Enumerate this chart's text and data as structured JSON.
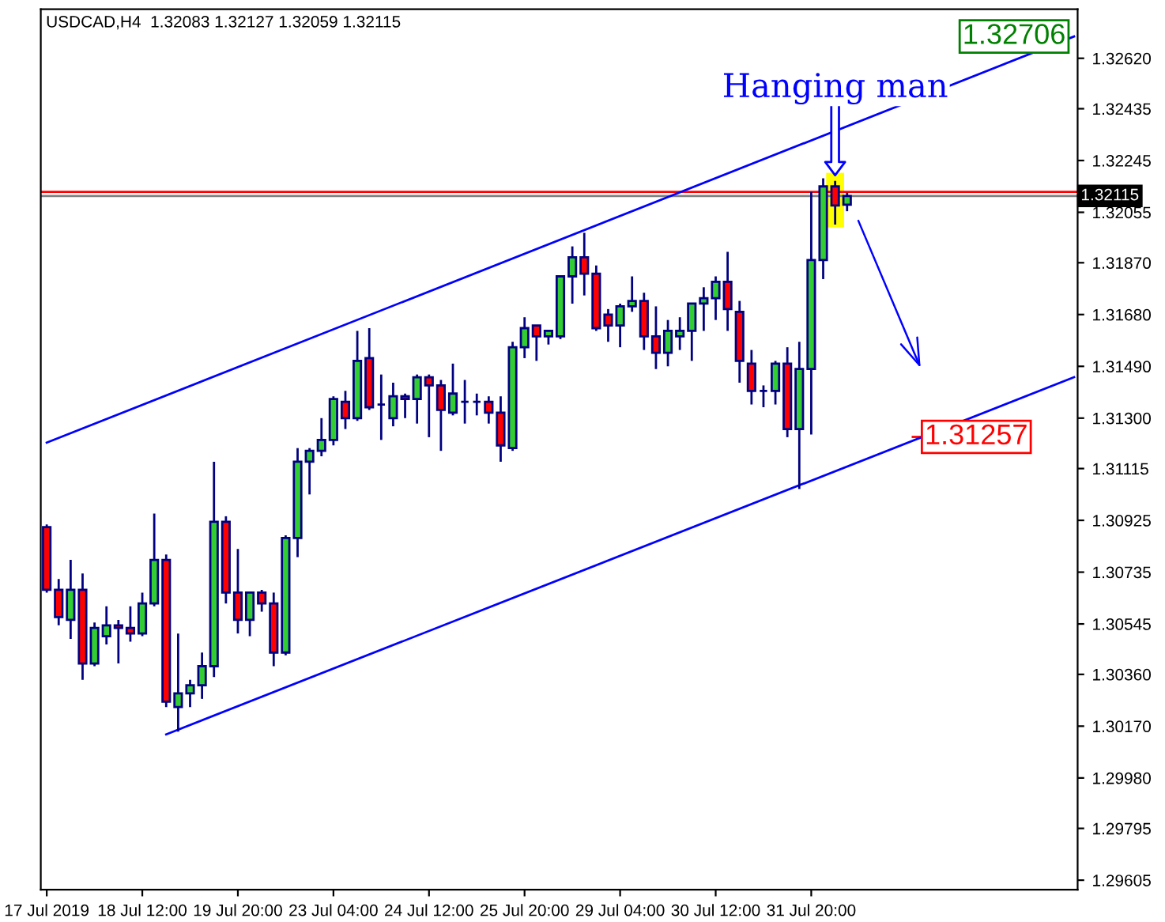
{
  "chart_data": {
    "type": "candlestick",
    "title": "USDCAD,H4  1.32083 1.32127 1.32059 1.32115",
    "categories": [
      "17 Jul 2019",
      null,
      null,
      null,
      null,
      null,
      null,
      null,
      "18 Jul 12:00",
      null,
      null,
      null,
      null,
      null,
      null,
      null,
      "19 Jul 20:00",
      null,
      null,
      null,
      null,
      null,
      null,
      null,
      "23 Jul 04:00",
      null,
      null,
      null,
      null,
      null,
      null,
      null,
      "24 Jul 12:00",
      null,
      null,
      null,
      null,
      null,
      null,
      null,
      "25 Jul 20:00",
      null,
      null,
      null,
      null,
      null,
      null,
      null,
      "29 Jul 04:00",
      null,
      null,
      null,
      null,
      null,
      null,
      null,
      "30 Jul 12:00",
      null,
      null,
      null,
      null,
      null,
      null,
      null,
      "31 Jul 20:00",
      null,
      null,
      null,
      null,
      null,
      null,
      null,
      null,
      null,
      null,
      null,
      null,
      null,
      null,
      null,
      null,
      null,
      null,
      null,
      null,
      null,
      null
    ],
    "ohlc": [
      [
        1.309,
        1.3091,
        1.3066,
        1.3067
      ],
      [
        1.3067,
        1.3071,
        1.3054,
        1.3057
      ],
      [
        1.3056,
        1.3078,
        1.3049,
        1.3067
      ],
      [
        1.3067,
        1.3073,
        1.3034,
        1.304
      ],
      [
        1.304,
        1.3055,
        1.3039,
        1.3053
      ],
      [
        1.305,
        1.3061,
        1.3047,
        1.3054
      ],
      [
        1.3054,
        1.3056,
        1.304,
        1.3053
      ],
      [
        1.3053,
        1.3061,
        1.3048,
        1.3051
      ],
      [
        1.3051,
        1.3066,
        1.305,
        1.3062
      ],
      [
        1.3062,
        1.3095,
        1.3061,
        1.3078
      ],
      [
        1.3078,
        1.308,
        1.3024,
        1.3026
      ],
      [
        1.3024,
        1.3051,
        1.3015,
        1.3029
      ],
      [
        1.3029,
        1.3034,
        1.3024,
        1.3032
      ],
      [
        1.3032,
        1.3044,
        1.3027,
        1.3039
      ],
      [
        1.3039,
        1.3114,
        1.3035,
        1.3092
      ],
      [
        1.3092,
        1.3094,
        1.3062,
        1.3066
      ],
      [
        1.3066,
        1.3082,
        1.3051,
        1.3056
      ],
      [
        1.3056,
        1.3066,
        1.305,
        1.3066
      ],
      [
        1.3066,
        1.3067,
        1.3059,
        1.3062
      ],
      [
        1.3062,
        1.3066,
        1.3039,
        1.3044
      ],
      [
        1.3044,
        1.3087,
        1.3043,
        1.3086
      ],
      [
        1.3086,
        1.3119,
        1.3079,
        1.3114
      ],
      [
        1.3114,
        1.3119,
        1.3102,
        1.3118
      ],
      [
        1.3118,
        1.313,
        1.3116,
        1.3122
      ],
      [
        1.3122,
        1.3138,
        1.312,
        1.3137
      ],
      [
        1.3136,
        1.314,
        1.3126,
        1.313
      ],
      [
        1.313,
        1.3162,
        1.3129,
        1.3151
      ],
      [
        1.3152,
        1.3163,
        1.3133,
        1.3134
      ],
      [
        1.3135,
        1.3146,
        1.3122,
        1.3135
      ],
      [
        1.313,
        1.3143,
        1.3127,
        1.3138
      ],
      [
        1.3138,
        1.3139,
        1.313,
        1.3137
      ],
      [
        1.3137,
        1.3146,
        1.3128,
        1.3145
      ],
      [
        1.3145,
        1.3146,
        1.3123,
        1.3142
      ],
      [
        1.3142,
        1.3144,
        1.3118,
        1.3133
      ],
      [
        1.3132,
        1.315,
        1.3131,
        1.3139
      ],
      [
        1.3136,
        1.3144,
        1.3128,
        1.3136
      ],
      [
        1.3136,
        1.3139,
        1.3131,
        1.3136
      ],
      [
        1.3136,
        1.3138,
        1.3128,
        1.3132
      ],
      [
        1.3132,
        1.3138,
        1.3114,
        1.312
      ],
      [
        1.3119,
        1.3158,
        1.3118,
        1.3156
      ],
      [
        1.3156,
        1.3167,
        1.3152,
        1.3163
      ],
      [
        1.3164,
        1.3164,
        1.3151,
        1.316
      ],
      [
        1.316,
        1.3162,
        1.3157,
        1.3162
      ],
      [
        1.316,
        1.3182,
        1.3159,
        1.3182
      ],
      [
        1.3182,
        1.3193,
        1.3172,
        1.3189
      ],
      [
        1.3189,
        1.3198,
        1.3175,
        1.3183
      ],
      [
        1.3183,
        1.3186,
        1.3162,
        1.3163
      ],
      [
        1.3168,
        1.317,
        1.3158,
        1.3164
      ],
      [
        1.3164,
        1.3172,
        1.3156,
        1.3171
      ],
      [
        1.3171,
        1.3182,
        1.3169,
        1.3173
      ],
      [
        1.3173,
        1.3176,
        1.3155,
        1.316
      ],
      [
        1.316,
        1.3171,
        1.3148,
        1.3154
      ],
      [
        1.3154,
        1.3166,
        1.3149,
        1.3162
      ],
      [
        1.316,
        1.3167,
        1.3155,
        1.3162
      ],
      [
        1.3162,
        1.3172,
        1.3151,
        1.3172
      ],
      [
        1.3172,
        1.3178,
        1.3162,
        1.3174
      ],
      [
        1.3174,
        1.3182,
        1.3166,
        1.318
      ],
      [
        1.318,
        1.3191,
        1.3162,
        1.317
      ],
      [
        1.3169,
        1.3173,
        1.3143,
        1.3151
      ],
      [
        1.315,
        1.3155,
        1.3135,
        1.314
      ],
      [
        1.314,
        1.3142,
        1.3134,
        1.314
      ],
      [
        1.314,
        1.3151,
        1.3135,
        1.315
      ],
      [
        1.315,
        1.3156,
        1.3123,
        1.3126
      ],
      [
        1.3126,
        1.3158,
        1.3104,
        1.3148
      ],
      [
        1.3148,
        1.3213,
        1.3124,
        1.3188
      ],
      [
        1.3188,
        1.3218,
        1.3181,
        1.3215
      ],
      [
        1.3215,
        1.3217,
        1.3201,
        1.3208
      ],
      [
        1.32083,
        1.32127,
        1.32059,
        1.32115
      ],
      null,
      null,
      null,
      null,
      null,
      null,
      null,
      null,
      null,
      null,
      null,
      null,
      null,
      null,
      null,
      null,
      null,
      null,
      null
    ],
    "colors": [
      "#ff0000",
      "#ff0000",
      "#32cd32",
      "#ff0000",
      "#32cd32",
      "#32cd32",
      "#ff0000",
      "#ff0000",
      "#32cd32",
      "#32cd32",
      "#ff0000",
      "#32cd32",
      "#32cd32",
      "#32cd32",
      "#32cd32",
      "#ff0000",
      "#ff0000",
      "#32cd32",
      "#ff0000",
      "#ff0000",
      "#32cd32",
      "#32cd32",
      "#32cd32",
      "#32cd32",
      "#32cd32",
      "#ff0000",
      "#32cd32",
      "#ff0000",
      "#000080",
      "#32cd32",
      "#ff0000",
      "#32cd32",
      "#ff0000",
      "#ff0000",
      "#32cd32",
      "#000080",
      "#000080",
      "#ff0000",
      "#ff0000",
      "#32cd32",
      "#32cd32",
      "#ff0000",
      "#32cd32",
      "#32cd32",
      "#32cd32",
      "#ff0000",
      "#ff0000",
      "#ff0000",
      "#32cd32",
      "#32cd32",
      "#ff0000",
      "#ff0000",
      "#32cd32",
      "#32cd32",
      "#32cd32",
      "#32cd32",
      "#32cd32",
      "#ff0000",
      "#ff0000",
      "#ff0000",
      "#000080",
      "#32cd32",
      "#ff0000",
      "#32cd32",
      "#32cd32",
      "#32cd32",
      "#ff0000",
      "#32cd32",
      null,
      null,
      null,
      null,
      null,
      null,
      null,
      null,
      null,
      null,
      null,
      null,
      null,
      null,
      null,
      null,
      null,
      null,
      null
    ],
    "series": [
      {
        "type": "line",
        "color": "#0000ff",
        "values": [
          1.3121,
          null,
          null,
          null,
          null,
          null,
          null,
          null,
          null,
          null,
          null,
          null,
          null,
          null,
          null,
          null,
          null,
          null,
          null,
          null,
          null,
          null,
          null,
          null,
          null,
          null,
          null,
          null,
          null,
          null,
          null,
          null,
          null,
          null,
          null,
          null,
          null,
          null,
          null,
          null,
          null,
          null,
          null,
          null,
          null,
          null,
          null,
          null,
          null,
          null,
          null,
          null,
          null,
          null,
          null,
          null,
          null,
          null,
          null,
          null,
          null,
          null,
          null,
          null,
          null,
          null,
          null,
          null,
          null,
          null,
          null,
          null,
          null,
          null,
          null,
          null,
          null,
          null,
          null,
          null,
          null,
          null,
          null,
          null,
          null,
          null,
          1.327
        ]
      },
      {
        "type": "line",
        "color": "#0000ff",
        "values": [
          null,
          null,
          null,
          null,
          null,
          null,
          null,
          null,
          null,
          null,
          1.3014,
          null,
          null,
          null,
          null,
          null,
          null,
          null,
          null,
          null,
          null,
          null,
          null,
          null,
          null,
          null,
          null,
          null,
          null,
          null,
          null,
          null,
          null,
          null,
          null,
          null,
          null,
          null,
          null,
          null,
          null,
          null,
          null,
          null,
          null,
          null,
          null,
          null,
          null,
          null,
          null,
          null,
          null,
          null,
          null,
          null,
          null,
          null,
          null,
          null,
          null,
          null,
          null,
          null,
          null,
          null,
          null,
          null,
          null,
          null,
          null,
          null,
          null,
          null,
          null,
          null,
          null,
          null,
          null,
          null,
          null,
          null,
          null,
          null,
          null,
          null,
          1.3145
        ]
      }
    ],
    "ylim": [
      1.2957,
      1.328
    ],
    "yticks": [
      {
        "value": 1.3262,
        "label": "1.32620"
      },
      1.32435,
      1.32245,
      1.32055,
      {
        "value": 1.3187,
        "label": "1.31870"
      },
      {
        "value": 1.3168,
        "label": "1.31680"
      },
      {
        "value": 1.3149,
        "label": "1.31490"
      },
      {
        "value": 1.313,
        "label": "1.31300"
      },
      1.31115,
      1.30925,
      1.30735,
      1.30545,
      {
        "value": 1.3036,
        "label": "1.30360"
      },
      {
        "value": 1.3017,
        "label": "1.30170"
      },
      {
        "value": 1.2998,
        "label": "1.29980"
      },
      1.29795,
      1.29605
    ],
    "ref_lines": [
      {
        "axis": "y",
        "value": 1.3213,
        "color": "#ff0000"
      },
      {
        "axis": "y",
        "value": 1.32115,
        "label": "1.32115",
        "color": "#808080"
      }
    ],
    "annotations": [
      "Hanging man",
      "1.32706",
      "1.31257"
    ],
    "grid": false,
    "legend": false
  }
}
